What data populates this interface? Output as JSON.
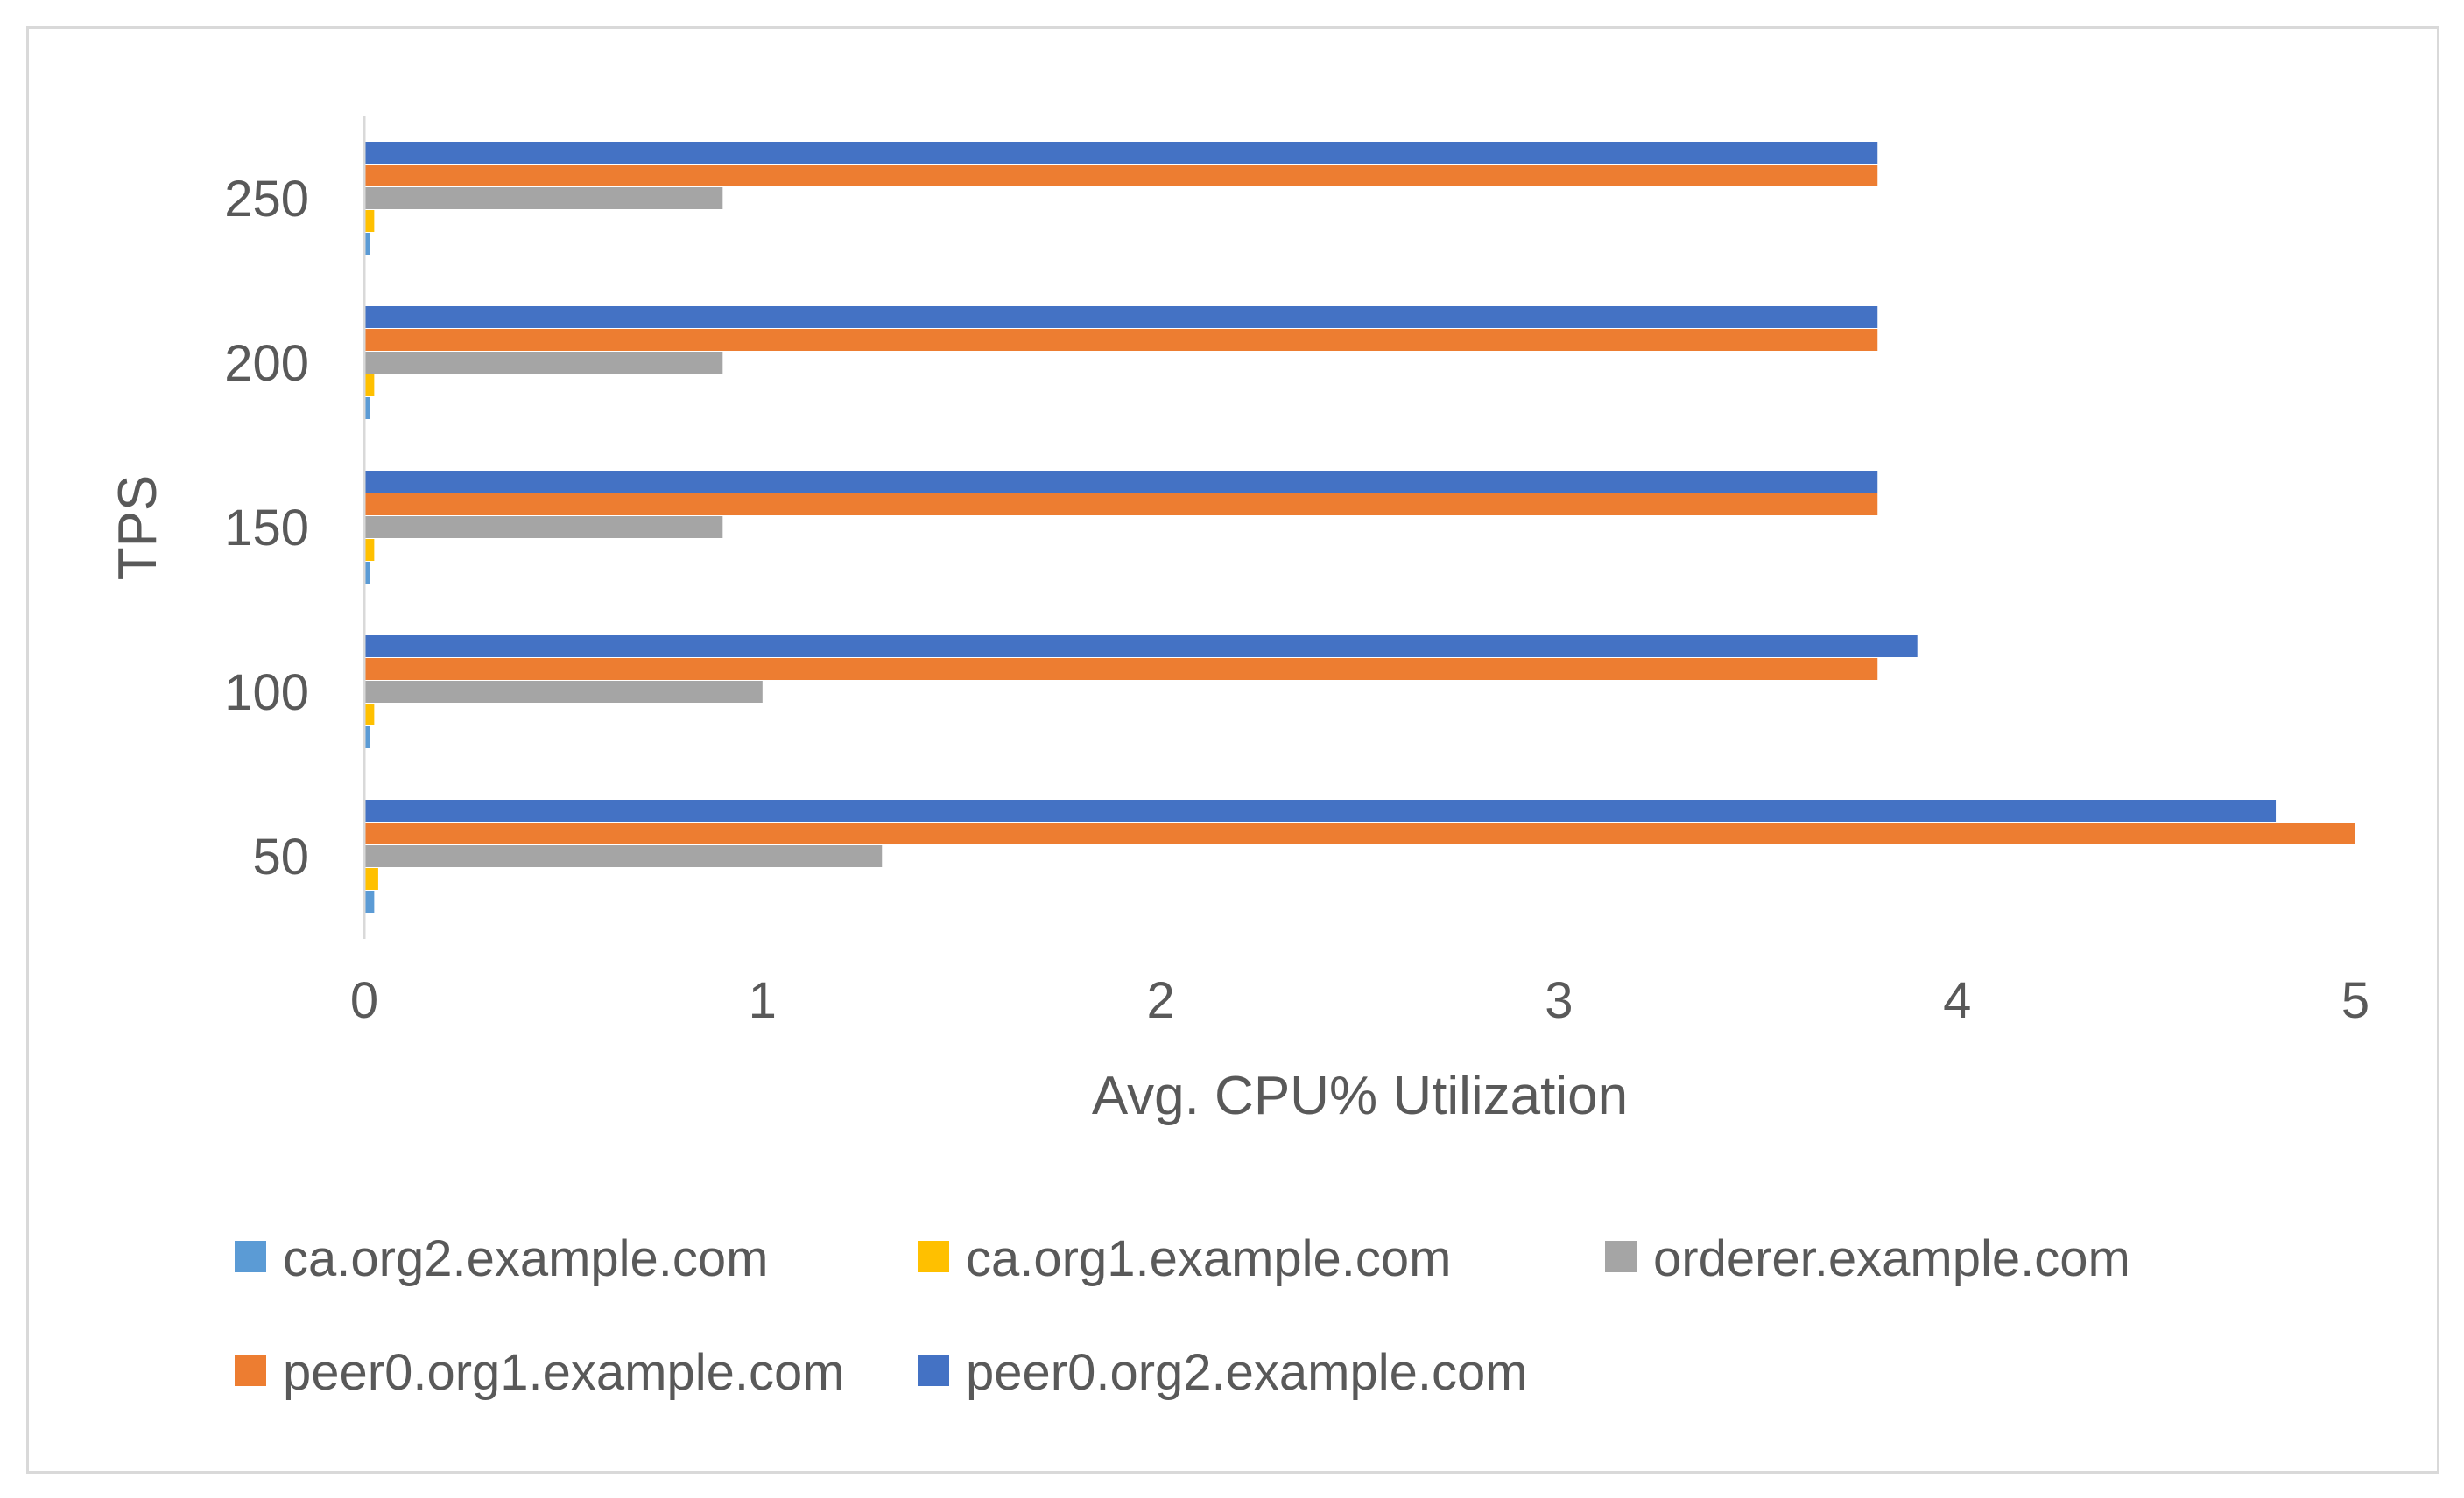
{
  "chart_data": {
    "type": "bar",
    "orientation": "horizontal",
    "categories": [
      "50",
      "100",
      "150",
      "200",
      "250"
    ],
    "xlabel": "Avg. CPU% Utilization",
    "ylabel": "TPS",
    "xlim": [
      0,
      5
    ],
    "x_ticks": [
      "0",
      "1",
      "2",
      "3",
      "4",
      "5"
    ],
    "grid": false,
    "legend_position": "bottom",
    "series": [
      {
        "name": "ca.org2.example.com",
        "color": "#5b9bd5",
        "values": [
          0.025,
          0.015,
          0.015,
          0.015,
          0.015
        ]
      },
      {
        "name": "ca.org1.example.com",
        "color": "#ffc000",
        "values": [
          0.035,
          0.025,
          0.025,
          0.025,
          0.025
        ]
      },
      {
        "name": "orderer.example.com",
        "color": "#a5a5a5",
        "values": [
          1.3,
          1.0,
          0.9,
          0.9,
          0.9
        ]
      },
      {
        "name": "peer0.org1.example.com",
        "color": "#ed7d31",
        "values": [
          5.0,
          3.8,
          3.8,
          3.8,
          3.8
        ]
      },
      {
        "name": "peer0.org2.example.com",
        "color": "#4472c4",
        "values": [
          4.8,
          3.9,
          3.8,
          3.8,
          3.8
        ]
      }
    ]
  }
}
